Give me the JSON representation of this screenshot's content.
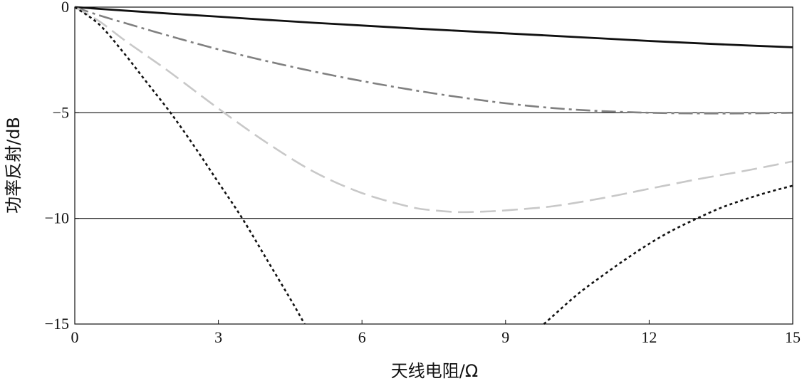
{
  "chart_data": {
    "type": "line",
    "title": "",
    "xlabel": "天线电阻/Ω",
    "ylabel": "功率反射/dB",
    "xlim": [
      0,
      15
    ],
    "ylim": [
      -15,
      0
    ],
    "xticks": [
      0,
      3,
      6,
      9,
      12,
      15
    ],
    "xtick_labels": [
      "0",
      "3",
      "6",
      "9",
      "12",
      "15"
    ],
    "yticks": [
      0,
      -5,
      -10,
      -15
    ],
    "ytick_labels": [
      "0",
      "−5",
      "−10",
      "−15"
    ],
    "reference_lines": [
      -5,
      -10
    ],
    "grid": false,
    "legend": "none",
    "series": [
      {
        "style": "solid",
        "color": "#111111",
        "x": [
          0,
          1,
          2,
          3,
          4,
          5,
          6,
          7,
          8,
          9,
          10,
          11,
          12,
          13,
          14,
          15
        ],
        "y": [
          0,
          -0.16,
          -0.31,
          -0.45,
          -0.6,
          -0.74,
          -0.87,
          -1.0,
          -1.12,
          -1.24,
          -1.36,
          -1.48,
          -1.6,
          -1.71,
          -1.81,
          -1.9
        ]
      },
      {
        "style": "dash-dot",
        "color": "#808080",
        "x": [
          0,
          0.5,
          1,
          2,
          3,
          4,
          5,
          6,
          7,
          8,
          9,
          10,
          11,
          12,
          13,
          14,
          15
        ],
        "y": [
          0,
          -0.38,
          -0.72,
          -1.38,
          -2.0,
          -2.55,
          -3.05,
          -3.5,
          -3.9,
          -4.25,
          -4.55,
          -4.78,
          -4.92,
          -5.0,
          -5.03,
          -5.03,
          -5.0
        ]
      },
      {
        "style": "dashed",
        "color": "#c8c8c8",
        "x": [
          0,
          0.5,
          1,
          1.5,
          2,
          3,
          4,
          5,
          6,
          7,
          7.5,
          8,
          8.5,
          9,
          10,
          11,
          12,
          13,
          14,
          15
        ],
        "y": [
          0,
          -0.65,
          -1.5,
          -2.3,
          -3.1,
          -4.8,
          -6.4,
          -7.8,
          -8.8,
          -9.45,
          -9.62,
          -9.7,
          -9.68,
          -9.62,
          -9.42,
          -9.05,
          -8.6,
          -8.15,
          -7.75,
          -7.3
        ]
      },
      {
        "style": "dotted",
        "color": "#111111",
        "x": [
          0,
          0.5,
          1,
          1.5,
          2,
          2.5,
          3,
          3.5,
          4,
          4.5,
          4.8,
          9.8,
          10,
          10.5,
          11,
          11.5,
          12,
          12.5,
          13,
          13.5,
          14,
          14.5,
          15
        ],
        "y": [
          0,
          -0.8,
          -2.1,
          -3.55,
          -5.0,
          -6.6,
          -8.3,
          -10.0,
          -11.9,
          -13.8,
          -15.0,
          -15.0,
          -14.6,
          -13.6,
          -12.75,
          -11.95,
          -11.2,
          -10.55,
          -10.0,
          -9.5,
          -9.1,
          -8.75,
          -8.45
        ]
      }
    ]
  }
}
